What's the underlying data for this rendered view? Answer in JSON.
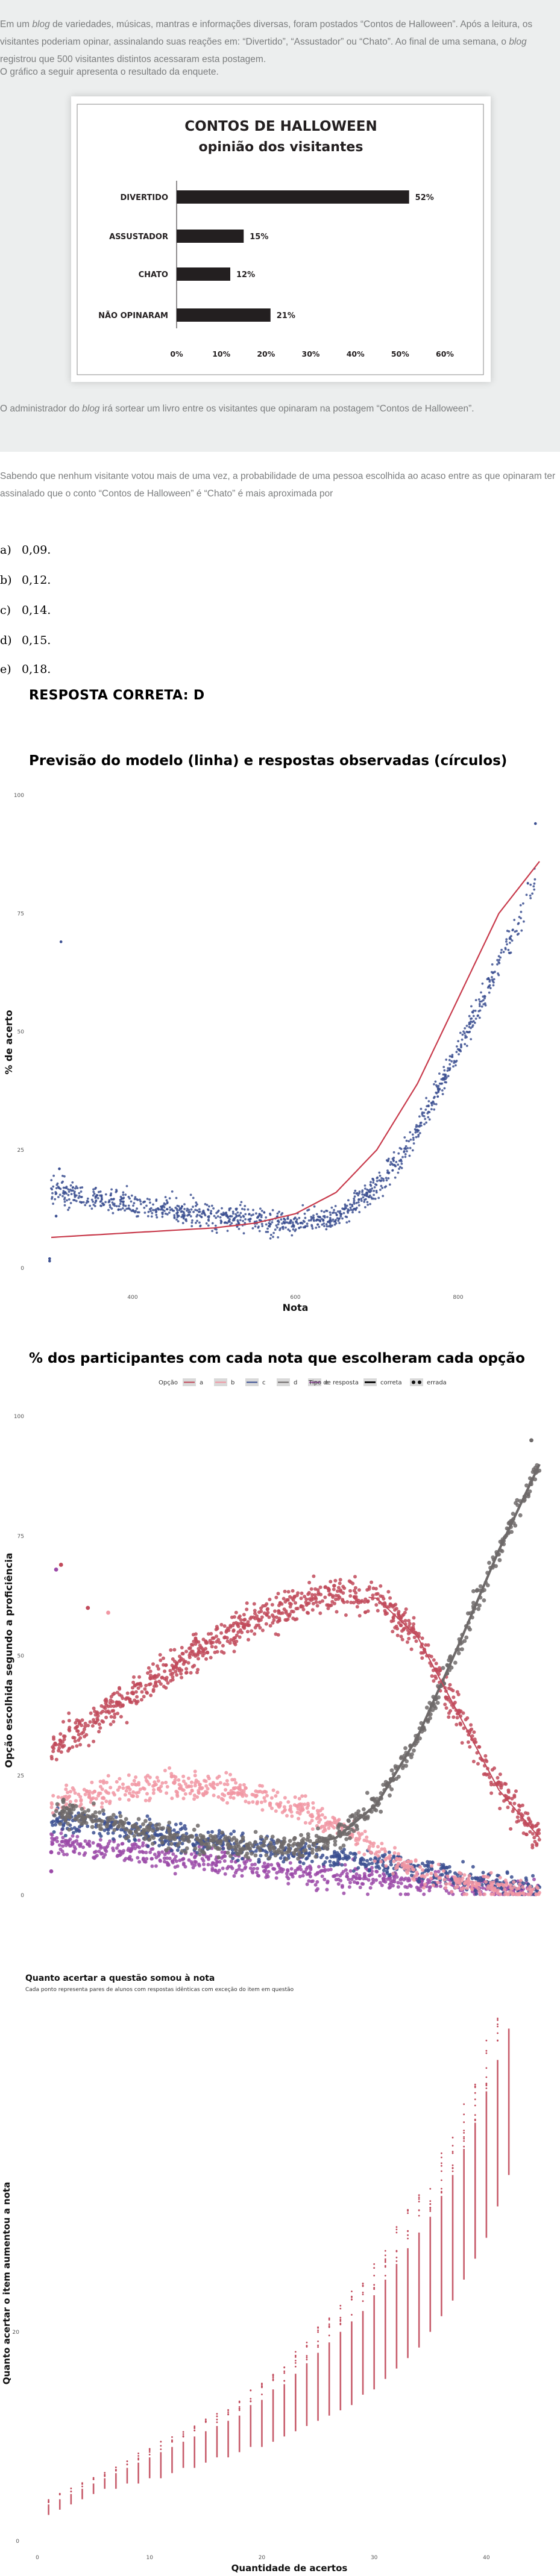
{
  "question": {
    "paragraph1_a": "Em um ",
    "paragraph1_b": "blog",
    "paragraph1_c": " de variedades, músicas, mantras e informações diversas, foram postados “Contos de Halloween”. Após a leitura, os visitantes poderiam opinar, assinalando suas reações em: “Divertido”, “Assustador” ou “Chato”. Ao final de uma semana, o ",
    "paragraph1_d": "blog",
    "paragraph1_e": " registrou que 500 visitantes distintos acessaram esta postagem.",
    "paragraph2": "O gráfico a seguir apresenta o resultado da enquete.",
    "paragraph3_a": "O administrador do ",
    "paragraph3_b": "blog",
    "paragraph3_c": " irá sortear um livro entre os visitantes que opinaram na postagem “Contos de Halloween”.",
    "paragraph4": "Sabendo que nenhum visitante votou mais de uma vez, a probabilidade de uma pessoa escolhida ao acaso entre as que opinaram ter assinalado que o conto “Contos de Halloween” é “Chato” é mais aproximada por",
    "options": [
      {
        "letter": "a)",
        "text": "0,09."
      },
      {
        "letter": "b)",
        "text": "0,12."
      },
      {
        "letter": "c)",
        "text": "0,14."
      },
      {
        "letter": "d)",
        "text": "0,15."
      },
      {
        "letter": "e)",
        "text": "0,18."
      }
    ],
    "answer": "RESPOSTA CORRETA: D"
  },
  "chart_data": [
    {
      "type": "bar",
      "title": "CONTOS DE HALLOWEEN",
      "subtitle": "opinião dos visitantes",
      "categories": [
        "DIVERTIDO",
        "ASSUSTADOR",
        "CHATO",
        "NÃO OPINARAM"
      ],
      "values": [
        52,
        15,
        12,
        21
      ],
      "value_labels": [
        "52%",
        "15%",
        "12%",
        "21%"
      ],
      "xlim": [
        0,
        60
      ],
      "xticks": [
        "0%",
        "10%",
        "20%",
        "30%",
        "40%",
        "50%",
        "60%"
      ],
      "orientation": "horizontal",
      "bar_color": "#231f20"
    },
    {
      "type": "scatter",
      "title": "Previsão do modelo (linha) e respostas observadas (círculos)",
      "xlabel": "Nota",
      "ylabel": "% de acerto",
      "x_range": [
        300,
        900
      ],
      "xticks": [
        "400",
        "600",
        "800"
      ],
      "ylim": [
        0,
        100
      ],
      "yticks": [
        "0",
        "25",
        "50",
        "75",
        "100"
      ],
      "model_curve": {
        "x": [
          300,
          400,
          500,
          550,
          600,
          650,
          700,
          750,
          800,
          850,
          900
        ],
        "y": [
          6.5,
          7.5,
          8.5,
          9.5,
          11.5,
          16,
          25,
          39,
          57,
          75,
          86
        ]
      },
      "observed_trend": {
        "x": [
          300,
          350,
          400,
          450,
          500,
          550,
          600,
          650,
          700,
          750,
          800,
          850,
          900
        ],
        "y": [
          16.5,
          15,
          13.5,
          12,
          11,
          10,
          9.5,
          10.5,
          17,
          29,
          46,
          64,
          84
        ]
      },
      "outliers": [
        {
          "x": 312,
          "y": 69
        },
        {
          "x": 310,
          "y": 21
        },
        {
          "x": 298,
          "y": 1.5
        },
        {
          "x": 298,
          "y": 2
        },
        {
          "x": 306,
          "y": 11
        },
        {
          "x": 895,
          "y": 94
        }
      ],
      "point_color": "#3b4f91",
      "line_color": "#c83a4b"
    },
    {
      "type": "scatter",
      "title": "% dos participantes com cada nota que escolheram cada opção",
      "legend": {
        "option_title": "Opção",
        "options": [
          "a",
          "b",
          "c",
          "d",
          "e"
        ],
        "type_title": "Tipo de resposta",
        "types": [
          "correta",
          "errada"
        ],
        "placement": "top"
      },
      "xlabel": "Nota",
      "ylabel": "Opção escolhida segundo a proficiência",
      "x_range": [
        300,
        900
      ],
      "xticks": [
        "400",
        "600",
        "800"
      ],
      "ylim": [
        0,
        100
      ],
      "series": [
        {
          "name": "a",
          "color": "#c14a5b",
          "x": [
            300,
            350,
            400,
            450,
            500,
            550,
            600,
            650,
            700,
            750,
            800,
            850,
            900
          ],
          "y": [
            31,
            36,
            42,
            47.5,
            53,
            57.5,
            61,
            63,
            62,
            54,
            38,
            22,
            12
          ]
        },
        {
          "name": "b",
          "color": "#f197a3",
          "x": [
            300,
            350,
            400,
            450,
            500,
            550,
            600,
            650,
            700,
            750,
            800,
            850,
            900
          ],
          "y": [
            19,
            21,
            22.5,
            23,
            22.5,
            21,
            18.5,
            14.5,
            9.5,
            5,
            2.5,
            1.2,
            0.5
          ]
        },
        {
          "name": "c",
          "color": "#3b4f91",
          "x": [
            300,
            350,
            400,
            450,
            500,
            550,
            600,
            650,
            700,
            750,
            800,
            850,
            900
          ],
          "y": [
            16,
            15,
            13.5,
            12,
            11,
            10,
            9,
            8,
            7,
            5.5,
            4,
            2.5,
            1.5
          ]
        },
        {
          "name": "d",
          "color": "#6e6a6a",
          "x": [
            300,
            350,
            400,
            450,
            500,
            550,
            600,
            650,
            700,
            750,
            800,
            850,
            900
          ],
          "y": [
            18,
            16,
            14,
            12,
            11,
            10,
            10,
            12,
            19,
            33,
            52,
            72,
            90
          ]
        },
        {
          "name": "e",
          "color": "#9b4aa8",
          "x": [
            300,
            350,
            400,
            450,
            500,
            550,
            600,
            650,
            700,
            750,
            800,
            850,
            900
          ],
          "y": [
            11,
            10,
            9,
            8,
            7,
            6,
            5,
            4.2,
            3.5,
            2.5,
            1.8,
            1,
            0.5
          ]
        }
      ]
    },
    {
      "type": "scatter",
      "title": "Quanto acertar a questão somou à nota",
      "subtitle": "Cada ponto representa pares de alunos com respostas idênticas com exceção do item em questão",
      "xlabel": "Quantidade de acertos",
      "ylabel": "Quanto acertar o item aumentou a nota",
      "x_range": [
        0,
        45
      ],
      "xticks": [
        "0",
        "10",
        "20",
        "30",
        "40"
      ],
      "ylim": [
        0,
        50
      ],
      "yticks": [
        "0",
        "20"
      ],
      "columns": [
        {
          "x": 1,
          "min": 2.5,
          "max": 3.5
        },
        {
          "x": 2,
          "min": 3,
          "max": 4
        },
        {
          "x": 3,
          "min": 3.5,
          "max": 4.5
        },
        {
          "x": 4,
          "min": 4,
          "max": 5
        },
        {
          "x": 5,
          "min": 4.5,
          "max": 5.5
        },
        {
          "x": 6,
          "min": 5,
          "max": 6
        },
        {
          "x": 7,
          "min": 5,
          "max": 6.5
        },
        {
          "x": 8,
          "min": 5.5,
          "max": 7
        },
        {
          "x": 9,
          "min": 5.5,
          "max": 7.5
        },
        {
          "x": 10,
          "min": 6,
          "max": 8
        },
        {
          "x": 11,
          "min": 6,
          "max": 8.5
        },
        {
          "x": 12,
          "min": 6.5,
          "max": 9
        },
        {
          "x": 13,
          "min": 7,
          "max": 9.5
        },
        {
          "x": 14,
          "min": 7,
          "max": 10
        },
        {
          "x": 15,
          "min": 7.5,
          "max": 10.5
        },
        {
          "x": 16,
          "min": 8,
          "max": 11
        },
        {
          "x": 17,
          "min": 8,
          "max": 11.5
        },
        {
          "x": 18,
          "min": 8.5,
          "max": 12
        },
        {
          "x": 19,
          "min": 9,
          "max": 13
        },
        {
          "x": 20,
          "min": 9,
          "max": 13.5
        },
        {
          "x": 21,
          "min": 9.5,
          "max": 14.5
        },
        {
          "x": 22,
          "min": 10,
          "max": 15
        },
        {
          "x": 23,
          "min": 10.5,
          "max": 16
        },
        {
          "x": 24,
          "min": 11,
          "max": 17
        },
        {
          "x": 25,
          "min": 11.5,
          "max": 18
        },
        {
          "x": 26,
          "min": 12,
          "max": 19
        },
        {
          "x": 27,
          "min": 12.5,
          "max": 20
        },
        {
          "x": 28,
          "min": 13,
          "max": 21
        },
        {
          "x": 29,
          "min": 14,
          "max": 22
        },
        {
          "x": 30,
          "min": 14.5,
          "max": 23.5
        },
        {
          "x": 31,
          "min": 15.5,
          "max": 25
        },
        {
          "x": 32,
          "min": 16.5,
          "max": 26.5
        },
        {
          "x": 33,
          "min": 17.5,
          "max": 28
        },
        {
          "x": 34,
          "min": 18.5,
          "max": 29.5
        },
        {
          "x": 35,
          "min": 20,
          "max": 31
        },
        {
          "x": 36,
          "min": 21.5,
          "max": 33
        },
        {
          "x": 37,
          "min": 23,
          "max": 35
        },
        {
          "x": 38,
          "min": 25,
          "max": 37.5
        },
        {
          "x": 39,
          "min": 27,
          "max": 40
        },
        {
          "x": 40,
          "min": 29,
          "max": 43
        },
        {
          "x": 41,
          "min": 32,
          "max": 46
        },
        {
          "x": 42,
          "min": 35,
          "max": 49
        }
      ],
      "point_color": "#c14a5b"
    }
  ]
}
